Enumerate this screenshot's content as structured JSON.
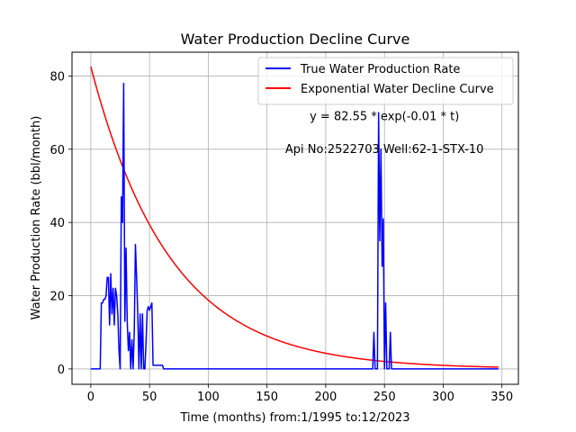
{
  "chart_data": {
    "type": "line",
    "title": "Water Production Decline Curve",
    "xlabel": "Time (months) from:1/1995 to:12/2023",
    "ylabel": "Water Production Rate (bbl/month)",
    "xlim": [
      -16,
      364
    ],
    "ylim": [
      -4.2,
      86.5
    ],
    "xticks": [
      0,
      50,
      100,
      150,
      200,
      250,
      300,
      350
    ],
    "yticks": [
      0,
      20,
      40,
      60,
      80
    ],
    "grid": true,
    "legend_position": "upper-right",
    "annotations": [
      {
        "text": "y = 82.55 * exp(-0.01 * t)",
        "x": 250,
        "y": 68
      },
      {
        "text": "Api No:2522703  Well:62-1-STX-10",
        "x": 250,
        "y": 59
      }
    ],
    "series": [
      {
        "name": "True Water Production Rate",
        "color": "#0000ff",
        "kind": "observed",
        "x": [
          0,
          8,
          9,
          10,
          11,
          12,
          13,
          14,
          15,
          16,
          17,
          18,
          19,
          20,
          21,
          22,
          23,
          24,
          25,
          26,
          27,
          28,
          29,
          30,
          31,
          32,
          33,
          34,
          35,
          36,
          37,
          38,
          39,
          40,
          41,
          42,
          43,
          44,
          45,
          46,
          47,
          48,
          49,
          50,
          51,
          52,
          53,
          54,
          55,
          56,
          57,
          58,
          59,
          60,
          61,
          62,
          63,
          64,
          65,
          66,
          67,
          68,
          69,
          70,
          238,
          239,
          240,
          241,
          242,
          243,
          244,
          245,
          246,
          247,
          248,
          249,
          250,
          251,
          252,
          253,
          254,
          255,
          256,
          257,
          347
        ],
        "y": [
          0,
          0,
          18,
          18,
          19,
          19,
          20,
          25,
          25,
          12,
          26,
          15,
          22,
          12,
          22,
          20,
          15,
          5,
          0,
          47,
          40,
          78,
          13,
          33,
          13,
          5,
          10,
          0,
          8,
          0,
          10,
          34,
          25,
          15,
          0,
          15,
          0,
          15,
          0,
          0,
          7,
          16,
          17,
          16,
          17,
          18,
          1,
          1,
          1,
          1,
          1,
          1,
          1,
          1,
          1,
          0,
          0,
          0,
          0,
          0,
          0,
          0,
          0,
          0,
          0,
          0,
          0,
          10,
          0,
          0,
          0,
          70,
          35,
          60,
          28,
          41,
          0,
          18,
          0,
          0,
          0,
          10,
          0,
          0,
          0
        ]
      },
      {
        "name": "Exponential Water Decline Curve",
        "color": "#ff0000",
        "kind": "fit",
        "a": 82.55,
        "b": 0.0148,
        "x_range": [
          0,
          347
        ]
      }
    ]
  }
}
